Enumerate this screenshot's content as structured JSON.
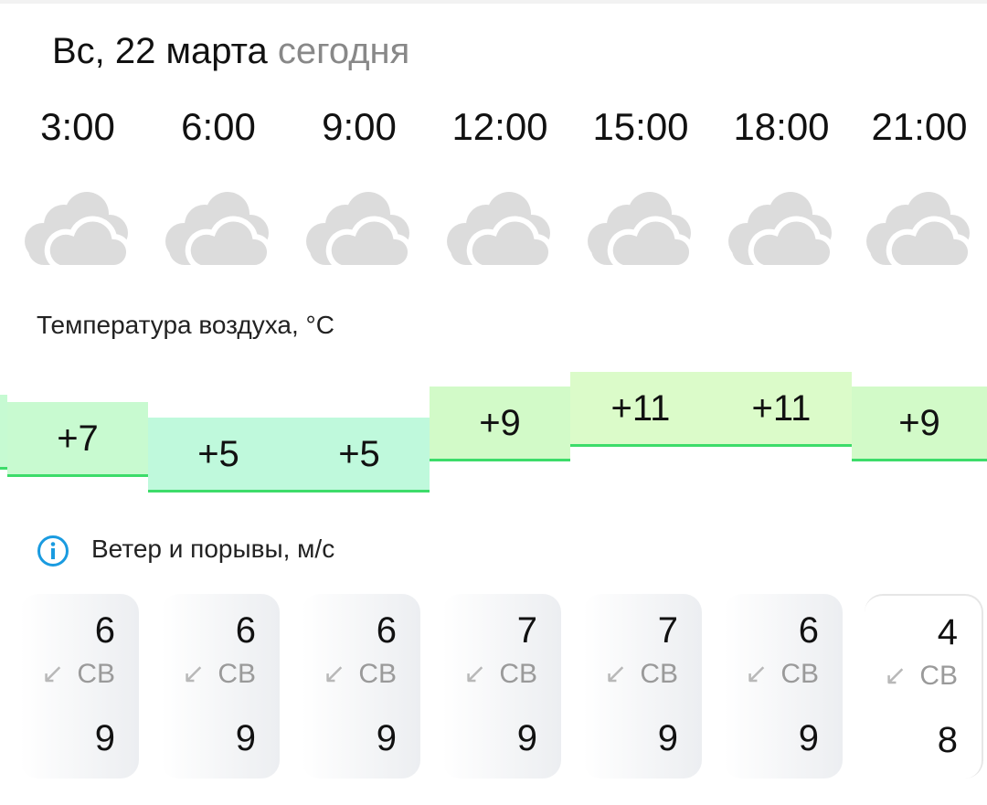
{
  "header": {
    "date": "Вс, 22 марта",
    "today": "сегодня"
  },
  "times": [
    "3:00",
    "6:00",
    "9:00",
    "12:00",
    "15:00",
    "18:00",
    "21:00"
  ],
  "weather_icon": "overcast-clouds-icon",
  "temperature": {
    "label": "Температура воздуха, °C",
    "values": [
      "+7",
      "+5",
      "+5",
      "+9",
      "+11",
      "+11",
      "+9"
    ],
    "numeric": [
      7,
      5,
      5,
      9,
      11,
      11,
      9
    ],
    "line_color": "#3ddc6a"
  },
  "wind": {
    "label": "Ветер и порывы, м/с",
    "info_icon": "info-icon",
    "items": [
      {
        "speed": "6",
        "dir": "СВ",
        "gust": "9"
      },
      {
        "speed": "6",
        "dir": "СВ",
        "gust": "9"
      },
      {
        "speed": "6",
        "dir": "СВ",
        "gust": "9"
      },
      {
        "speed": "7",
        "dir": "СВ",
        "gust": "9"
      },
      {
        "speed": "7",
        "dir": "СВ",
        "gust": "9"
      },
      {
        "speed": "6",
        "dir": "СВ",
        "gust": "9"
      },
      {
        "speed": "4",
        "dir": "СВ",
        "gust": "8"
      }
    ],
    "arrow": "↙"
  }
}
